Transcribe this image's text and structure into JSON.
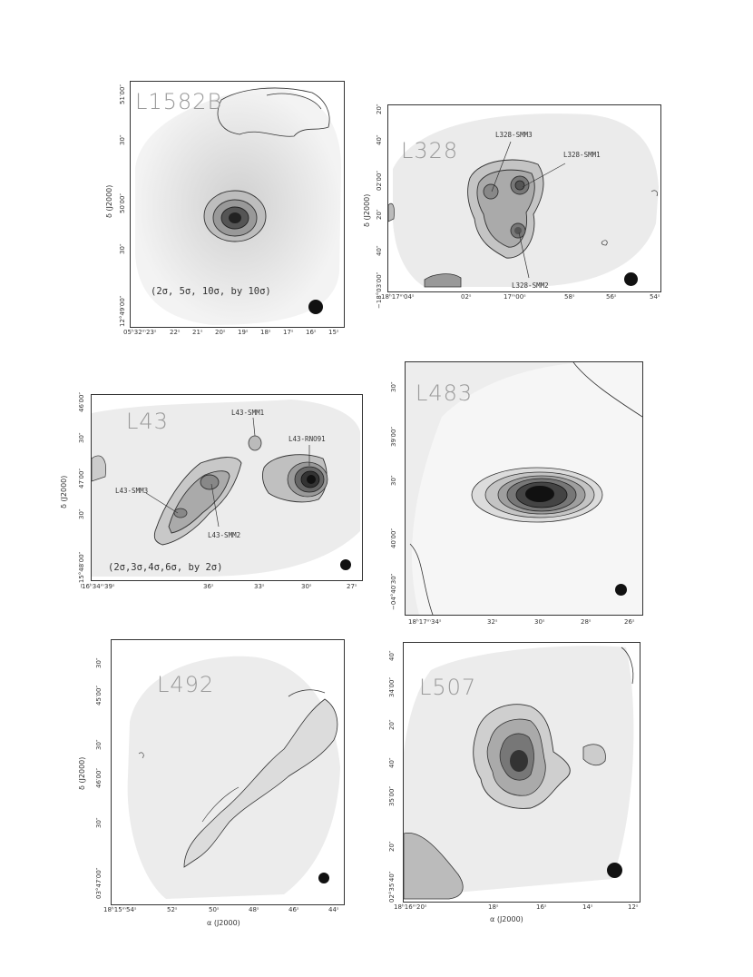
{
  "figure": {
    "panels": [
      {
        "id": "L1582B",
        "name": "L1582B",
        "note": "(2σ, 5σ, 10σ, by 10σ)",
        "ylabel": "δ (J2000)",
        "xlabel": "",
        "xticks": [
          "05ʰ32ᵐ23ˢ",
          "22ˢ",
          "21ˢ",
          "20ˢ",
          "19ˢ",
          "18ˢ",
          "17ˢ",
          "16ˢ",
          "15ˢ"
        ],
        "yticks": [
          "12°49′00″",
          "30″",
          "50′00″",
          "30″",
          "51′00″"
        ],
        "sources": []
      },
      {
        "id": "L328",
        "name": "L328",
        "note": "",
        "ylabel": "δ (J2000)",
        "xlabel": "",
        "xticks": [
          "18ʰ17ᵐ04ˢ",
          "02ˢ",
          "17ᵐ00ˢ",
          "58ˢ",
          "56ˢ",
          "54ˢ"
        ],
        "yticks": [
          "−18°03′00″",
          "40″",
          "20″",
          "02′00″",
          "40″",
          "20″"
        ],
        "sources": [
          "L328-SMM3",
          "L328-SMM1",
          "L328-SMM2"
        ]
      },
      {
        "id": "L43",
        "name": "L43",
        "note": "(2σ,3σ,4σ,6σ, by 2σ)",
        "ylabel": "δ (J2000)",
        "xlabel": "",
        "xticks": [
          "16ʰ34ᵐ39ˢ",
          "36ˢ",
          "33ˢ",
          "30ˢ",
          "27ˢ"
        ],
        "yticks": [
          "−15°48′00″",
          "30″",
          "47′00″",
          "30″",
          "46′00″"
        ],
        "sources": [
          "L43-SMM1",
          "L43-RNO91",
          "L43-SMM3",
          "L43-SMM2"
        ]
      },
      {
        "id": "L483",
        "name": "L483",
        "note": "",
        "ylabel": "",
        "xlabel": "",
        "xticks": [
          "18ʰ17ᵐ34ˢ",
          "32ˢ",
          "30ˢ",
          "28ˢ",
          "26ˢ"
        ],
        "yticks": [
          "−04°40′30″",
          "40′00″",
          "30″",
          "39′00″",
          "30″"
        ],
        "sources": []
      },
      {
        "id": "L492",
        "name": "L492",
        "note": "",
        "ylabel": "δ (J2000)",
        "xlabel": "α (J2000)",
        "xticks": [
          "18ʰ15ᵐ54ˢ",
          "52ˢ",
          "50ˢ",
          "48ˢ",
          "46ˢ",
          "44ˢ"
        ],
        "yticks": [
          "03°47′00″",
          "30″",
          "46′00″",
          "30″",
          "45′00″",
          "30″"
        ],
        "sources": []
      },
      {
        "id": "L507",
        "name": "L507",
        "note": "",
        "ylabel": "",
        "xlabel": "α (J2000)",
        "xticks": [
          "18ʰ16ᵐ20ˢ",
          "18ˢ",
          "16ˢ",
          "14ˢ",
          "12ˢ"
        ],
        "yticks": [
          "02°35′40″",
          "20″",
          "35′00″",
          "40″",
          "20″",
          "34′00″",
          "40″"
        ],
        "sources": []
      }
    ]
  }
}
